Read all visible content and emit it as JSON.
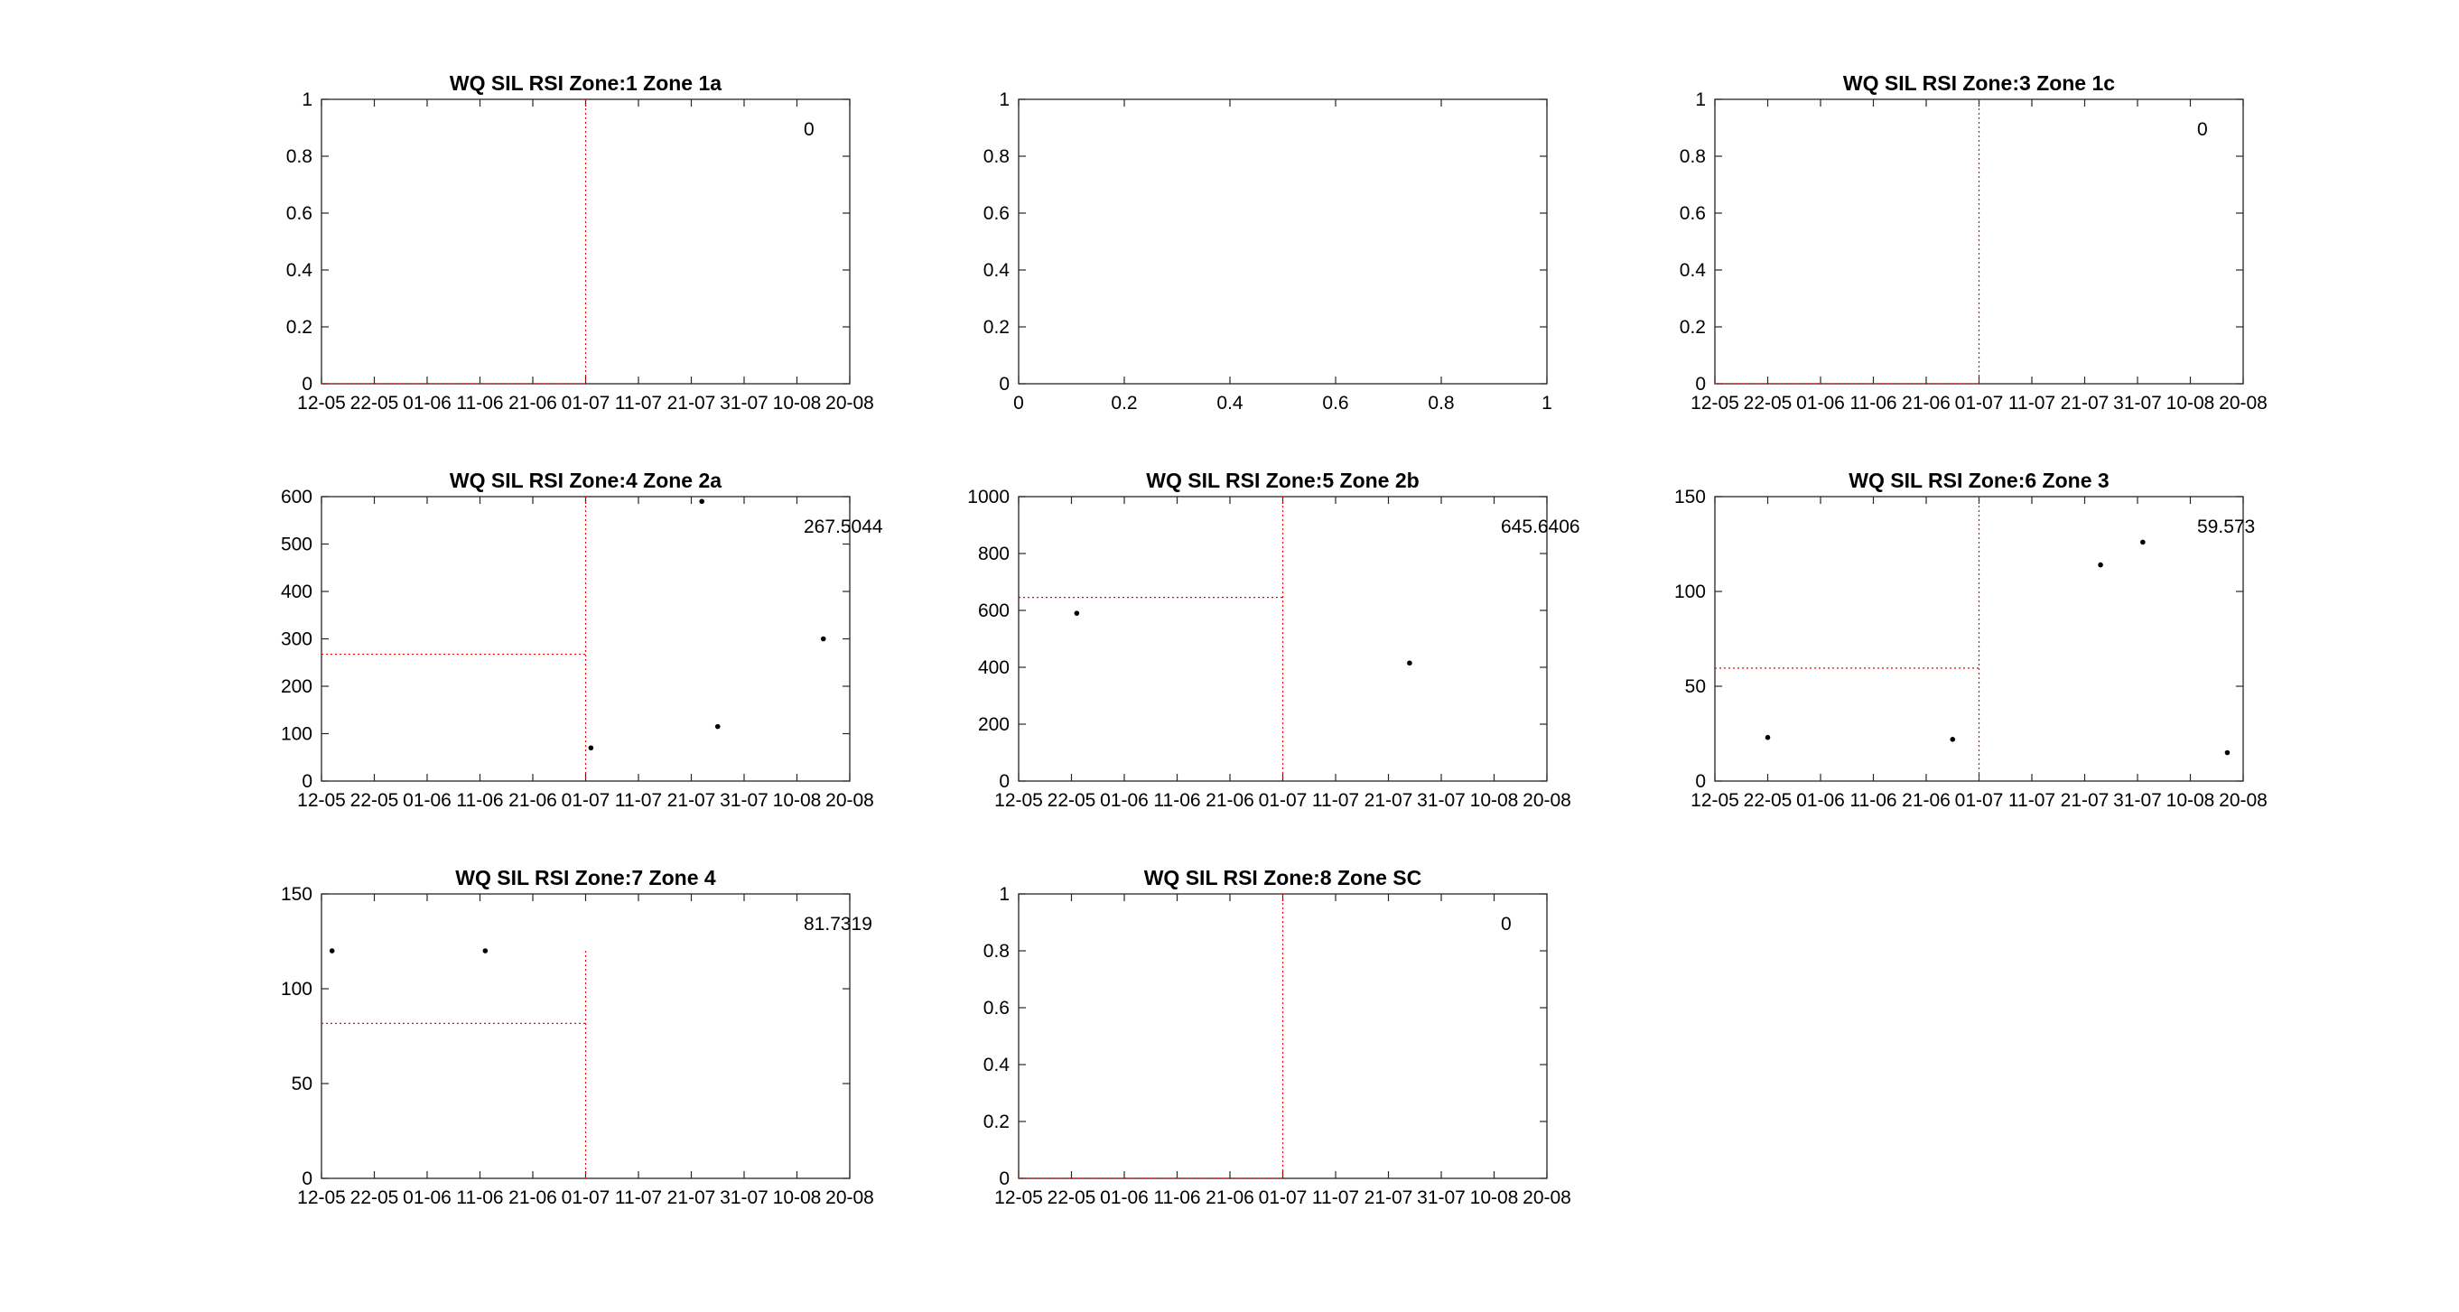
{
  "figure": {
    "background": "#ffffff",
    "axis_color": "#262626",
    "marker_color": "#000000",
    "reference_color": "#ff0000"
  },
  "chart_data": [
    {
      "type": "scatter",
      "title": "WQ SIL RSI Zone:1 Zone 1a",
      "x_type": "date",
      "x_ticks": [
        "12-05",
        "22-05",
        "01-06",
        "11-06",
        "21-06",
        "01-07",
        "11-07",
        "21-07",
        "31-07",
        "10-08",
        "20-08"
      ],
      "xlim": [
        "2023-05-12",
        "2023-08-20"
      ],
      "ylim": [
        0,
        1
      ],
      "y_ticks": [
        0,
        0.2,
        0.4,
        0.6,
        0.8,
        1
      ],
      "y_tick_labels": [
        "0",
        "0.2",
        "0.4",
        "0.6",
        "0.8",
        "1"
      ],
      "points": [],
      "reference_date": "2023-07-01",
      "reference_value": 0,
      "annotation": "0"
    },
    {
      "type": "scatter",
      "title": "",
      "x_type": "numeric",
      "x_ticks": [
        0,
        0.2,
        0.4,
        0.6,
        0.8,
        1
      ],
      "x_tick_labels": [
        "0",
        "0.2",
        "0.4",
        "0.6",
        "0.8",
        "1"
      ],
      "xlim": [
        0,
        1
      ],
      "ylim": [
        0,
        1
      ],
      "y_ticks": [
        0,
        0.2,
        0.4,
        0.6,
        0.8,
        1
      ],
      "y_tick_labels": [
        "0",
        "0.2",
        "0.4",
        "0.6",
        "0.8",
        "1"
      ],
      "points": []
    },
    {
      "type": "scatter",
      "title": "WQ SIL RSI Zone:3 Zone 1c",
      "x_type": "date",
      "x_ticks": [
        "12-05",
        "22-05",
        "01-06",
        "11-06",
        "21-06",
        "01-07",
        "11-07",
        "21-07",
        "31-07",
        "10-08",
        "20-08"
      ],
      "xlim": [
        "2023-05-12",
        "2023-08-20"
      ],
      "ylim": [
        0,
        1
      ],
      "y_ticks": [
        0,
        0.2,
        0.4,
        0.6,
        0.8,
        1
      ],
      "y_tick_labels": [
        "0",
        "0.2",
        "0.4",
        "0.6",
        "0.8",
        "1"
      ],
      "points": [],
      "reference_date": "2023-07-01",
      "reference_value": 0,
      "annotation": "0"
    },
    {
      "type": "scatter",
      "title": "WQ SIL RSI Zone:4 Zone 2a",
      "x_type": "date",
      "x_ticks": [
        "12-05",
        "22-05",
        "01-06",
        "11-06",
        "21-06",
        "01-07",
        "11-07",
        "21-07",
        "31-07",
        "10-08",
        "20-08"
      ],
      "xlim": [
        "2023-05-12",
        "2023-08-20"
      ],
      "ylim": [
        0,
        600
      ],
      "y_ticks": [
        0,
        100,
        200,
        300,
        400,
        500,
        600
      ],
      "y_tick_labels": [
        "0",
        "100",
        "200",
        "300",
        "400",
        "500",
        "600"
      ],
      "points": [
        [
          "2023-07-02",
          70
        ],
        [
          "2023-07-23",
          590
        ],
        [
          "2023-07-26",
          115
        ],
        [
          "2023-08-15",
          300
        ]
      ],
      "reference_date": "2023-07-01",
      "reference_value": 267.5044,
      "annotation": "267.5044"
    },
    {
      "type": "scatter",
      "title": "WQ SIL RSI Zone:5 Zone 2b",
      "x_type": "date",
      "x_ticks": [
        "12-05",
        "22-05",
        "01-06",
        "11-06",
        "21-06",
        "01-07",
        "11-07",
        "21-07",
        "31-07",
        "10-08",
        "20-08"
      ],
      "xlim": [
        "2023-05-12",
        "2023-08-20"
      ],
      "ylim": [
        0,
        1000
      ],
      "y_ticks": [
        0,
        200,
        400,
        600,
        800,
        1000
      ],
      "y_tick_labels": [
        "0",
        "200",
        "400",
        "600",
        "800",
        "1000"
      ],
      "points": [
        [
          "2023-05-23",
          590
        ],
        [
          "2023-07-25",
          415
        ]
      ],
      "reference_date": "2023-07-01",
      "reference_value": 645.6406,
      "annotation": "645.6406"
    },
    {
      "type": "scatter",
      "title": "WQ SIL RSI Zone:6 Zone 3",
      "x_type": "date",
      "x_ticks": [
        "12-05",
        "22-05",
        "01-06",
        "11-06",
        "21-06",
        "01-07",
        "11-07",
        "21-07",
        "31-07",
        "10-08",
        "20-08"
      ],
      "xlim": [
        "2023-05-12",
        "2023-08-20"
      ],
      "ylim": [
        0,
        150
      ],
      "y_ticks": [
        0,
        50,
        100,
        150
      ],
      "y_tick_labels": [
        "0",
        "50",
        "100",
        "150"
      ],
      "points": [
        [
          "2023-05-22",
          23
        ],
        [
          "2023-06-26",
          22
        ],
        [
          "2023-07-24",
          114
        ],
        [
          "2023-08-01",
          126
        ],
        [
          "2023-08-17",
          15
        ]
      ],
      "reference_date": "2023-07-01",
      "reference_value": 59.573,
      "annotation": "59.573"
    },
    {
      "type": "scatter",
      "title": "WQ SIL RSI Zone:7 Zone 4",
      "x_type": "date",
      "x_ticks": [
        "12-05",
        "22-05",
        "01-06",
        "11-06",
        "21-06",
        "01-07",
        "11-07",
        "21-07",
        "31-07",
        "10-08",
        "20-08"
      ],
      "xlim": [
        "2023-05-12",
        "2023-08-20"
      ],
      "ylim": [
        0,
        150
      ],
      "y_ticks": [
        0,
        50,
        100,
        150
      ],
      "y_tick_labels": [
        "0",
        "50",
        "100",
        "150"
      ],
      "points": [
        [
          "2023-05-14",
          120
        ],
        [
          "2023-06-12",
          120
        ]
      ],
      "reference_date": "2023-07-01",
      "reference_value": 81.7319,
      "reference_line_top": 120,
      "annotation": "81.7319"
    },
    {
      "type": "scatter",
      "title": "WQ SIL RSI Zone:8 Zone SC",
      "x_type": "date",
      "x_ticks": [
        "12-05",
        "22-05",
        "01-06",
        "11-06",
        "21-06",
        "01-07",
        "11-07",
        "21-07",
        "31-07",
        "10-08",
        "20-08"
      ],
      "xlim": [
        "2023-05-12",
        "2023-08-20"
      ],
      "ylim": [
        0,
        1
      ],
      "y_ticks": [
        0,
        0.2,
        0.4,
        0.6,
        0.8,
        1
      ],
      "y_tick_labels": [
        "0",
        "0.2",
        "0.4",
        "0.6",
        "0.8",
        "1"
      ],
      "points": [],
      "reference_date": "2023-07-01",
      "reference_value": 0,
      "annotation": "0"
    }
  ]
}
